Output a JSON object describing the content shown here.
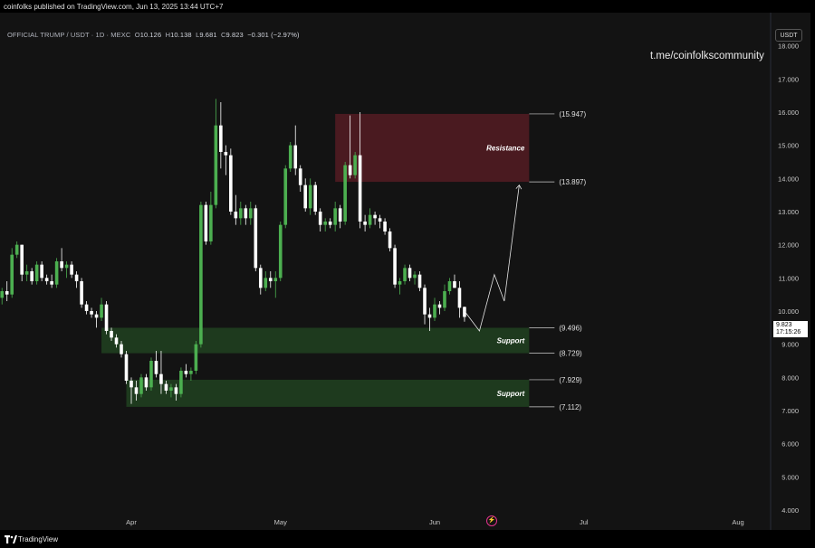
{
  "publisher_line": "coinfolks published on TradingView.com, Jun 13, 2025 13:44 UTC+7",
  "symbol": {
    "name": "OFFICIAL TRUMP / USDT · 1D · MEXC",
    "o_label": "O",
    "o": "10.126",
    "h_label": "H",
    "h": "10.138",
    "l_label": "L",
    "l": "9.681",
    "c_label": "C",
    "c": "9.823",
    "change": "−0.301 (−2.97%)"
  },
  "watermark": "t.me/coinfolkscommunity",
  "currency": "USDT",
  "last_price": {
    "value": "9.823",
    "countdown": "17:15:26"
  },
  "footer_brand": "TradingView",
  "colors": {
    "up": "#4caf50",
    "down": "#ffffff",
    "background": "#131313",
    "resistance": "#4a1a20",
    "support": "#1e3a1e"
  },
  "chart_data": {
    "type": "candlestick",
    "y_axis": {
      "range": [
        3.4,
        19.0
      ],
      "ticks": [
        "18.000",
        "17.000",
        "16.000",
        "15.000",
        "14.000",
        "13.000",
        "12.000",
        "11.000",
        "10.000",
        "9.000",
        "8.000",
        "7.000",
        "6.000",
        "5.000",
        "4.000"
      ]
    },
    "x_axis": {
      "ticks": [
        {
          "label": "Apr",
          "date": "2025-04-01"
        },
        {
          "label": "May",
          "date": "2025-05-01"
        },
        {
          "label": "Jun",
          "date": "2025-06-01"
        },
        {
          "label": "Jul",
          "date": "2025-07-01"
        },
        {
          "label": "Aug",
          "date": "2025-08-01"
        }
      ]
    },
    "candles": [
      {
        "date": "2025-03-01",
        "o": 13.1,
        "h": 13.3,
        "l": 12.2,
        "c": 12.3
      },
      {
        "date": "2025-03-02",
        "o": 12.3,
        "h": 12.4,
        "l": 11.7,
        "c": 11.9
      },
      {
        "date": "2025-03-03",
        "o": 11.9,
        "h": 12.1,
        "l": 10.4,
        "c": 10.6
      },
      {
        "date": "2025-03-04",
        "o": 10.6,
        "h": 10.8,
        "l": 10.0,
        "c": 10.2
      },
      {
        "date": "2025-03-05",
        "o": 10.2,
        "h": 10.6,
        "l": 9.9,
        "c": 10.4
      },
      {
        "date": "2025-03-06",
        "o": 10.4,
        "h": 10.7,
        "l": 10.2,
        "c": 10.6
      },
      {
        "date": "2025-03-07",
        "o": 10.6,
        "h": 10.9,
        "l": 10.3,
        "c": 10.5
      },
      {
        "date": "2025-03-08",
        "o": 10.5,
        "h": 11.9,
        "l": 10.4,
        "c": 11.7
      },
      {
        "date": "2025-03-09",
        "o": 11.7,
        "h": 12.1,
        "l": 11.6,
        "c": 12.0
      },
      {
        "date": "2025-03-10",
        "o": 12.0,
        "h": 12.0,
        "l": 10.9,
        "c": 11.1
      },
      {
        "date": "2025-03-11",
        "o": 11.1,
        "h": 11.4,
        "l": 10.9,
        "c": 11.2
      },
      {
        "date": "2025-03-12",
        "o": 11.2,
        "h": 11.3,
        "l": 10.8,
        "c": 10.9
      },
      {
        "date": "2025-03-13",
        "o": 10.9,
        "h": 11.5,
        "l": 10.8,
        "c": 11.4
      },
      {
        "date": "2025-03-14",
        "o": 11.4,
        "h": 11.5,
        "l": 10.9,
        "c": 11.0
      },
      {
        "date": "2025-03-15",
        "o": 11.0,
        "h": 11.1,
        "l": 10.8,
        "c": 10.9
      },
      {
        "date": "2025-03-16",
        "o": 10.9,
        "h": 11.1,
        "l": 10.7,
        "c": 10.8
      },
      {
        "date": "2025-03-17",
        "o": 10.8,
        "h": 11.6,
        "l": 10.7,
        "c": 11.5
      },
      {
        "date": "2025-03-18",
        "o": 11.5,
        "h": 11.9,
        "l": 11.2,
        "c": 11.3
      },
      {
        "date": "2025-03-19",
        "o": 11.3,
        "h": 11.5,
        "l": 11.0,
        "c": 11.4
      },
      {
        "date": "2025-03-20",
        "o": 11.4,
        "h": 11.5,
        "l": 11.0,
        "c": 11.1
      },
      {
        "date": "2025-03-21",
        "o": 11.1,
        "h": 11.2,
        "l": 10.7,
        "c": 10.9
      },
      {
        "date": "2025-03-22",
        "o": 10.9,
        "h": 11.0,
        "l": 10.1,
        "c": 10.2
      },
      {
        "date": "2025-03-23",
        "o": 10.2,
        "h": 10.3,
        "l": 9.9,
        "c": 10.0
      },
      {
        "date": "2025-03-24",
        "o": 10.0,
        "h": 10.1,
        "l": 9.8,
        "c": 9.9
      },
      {
        "date": "2025-03-25",
        "o": 9.9,
        "h": 10.0,
        "l": 9.5,
        "c": 9.8
      },
      {
        "date": "2025-03-26",
        "o": 9.8,
        "h": 10.4,
        "l": 9.7,
        "c": 10.2
      },
      {
        "date": "2025-03-27",
        "o": 10.2,
        "h": 10.3,
        "l": 9.3,
        "c": 9.4
      },
      {
        "date": "2025-03-28",
        "o": 9.4,
        "h": 9.5,
        "l": 9.1,
        "c": 9.2
      },
      {
        "date": "2025-03-29",
        "o": 9.2,
        "h": 9.3,
        "l": 8.9,
        "c": 9.0
      },
      {
        "date": "2025-03-30",
        "o": 9.0,
        "h": 9.1,
        "l": 8.6,
        "c": 8.7
      },
      {
        "date": "2025-03-31",
        "o": 8.7,
        "h": 8.8,
        "l": 7.8,
        "c": 7.9
      },
      {
        "date": "2025-04-01",
        "o": 7.9,
        "h": 8.0,
        "l": 7.2,
        "c": 7.7
      },
      {
        "date": "2025-04-02",
        "o": 7.7,
        "h": 7.9,
        "l": 7.3,
        "c": 7.5
      },
      {
        "date": "2025-04-03",
        "o": 7.5,
        "h": 8.1,
        "l": 7.4,
        "c": 8.0
      },
      {
        "date": "2025-04-04",
        "o": 8.0,
        "h": 8.1,
        "l": 7.6,
        "c": 7.7
      },
      {
        "date": "2025-04-05",
        "o": 7.7,
        "h": 8.6,
        "l": 7.6,
        "c": 8.5
      },
      {
        "date": "2025-04-06",
        "o": 8.5,
        "h": 8.8,
        "l": 8.0,
        "c": 8.1
      },
      {
        "date": "2025-04-07",
        "o": 8.1,
        "h": 8.8,
        "l": 7.5,
        "c": 7.8
      },
      {
        "date": "2025-04-08",
        "o": 7.8,
        "h": 7.9,
        "l": 7.5,
        "c": 7.6
      },
      {
        "date": "2025-04-09",
        "o": 7.6,
        "h": 7.8,
        "l": 7.4,
        "c": 7.7
      },
      {
        "date": "2025-04-10",
        "o": 7.7,
        "h": 7.8,
        "l": 7.3,
        "c": 7.5
      },
      {
        "date": "2025-04-11",
        "o": 7.5,
        "h": 8.3,
        "l": 7.4,
        "c": 8.2
      },
      {
        "date": "2025-04-12",
        "o": 8.2,
        "h": 8.4,
        "l": 8.0,
        "c": 8.1
      },
      {
        "date": "2025-04-13",
        "o": 8.1,
        "h": 8.3,
        "l": 7.9,
        "c": 8.2
      },
      {
        "date": "2025-04-14",
        "o": 8.2,
        "h": 9.1,
        "l": 8.1,
        "c": 9.0
      },
      {
        "date": "2025-04-15",
        "o": 9.0,
        "h": 13.3,
        "l": 8.9,
        "c": 13.2
      },
      {
        "date": "2025-04-16",
        "o": 13.2,
        "h": 13.3,
        "l": 12.0,
        "c": 12.1
      },
      {
        "date": "2025-04-17",
        "o": 12.1,
        "h": 13.6,
        "l": 12.0,
        "c": 13.2
      },
      {
        "date": "2025-04-18",
        "o": 13.2,
        "h": 16.4,
        "l": 13.1,
        "c": 15.6
      },
      {
        "date": "2025-04-19",
        "o": 15.6,
        "h": 16.3,
        "l": 14.3,
        "c": 14.8
      },
      {
        "date": "2025-04-20",
        "o": 14.8,
        "h": 15.0,
        "l": 14.1,
        "c": 14.7
      },
      {
        "date": "2025-04-21",
        "o": 14.7,
        "h": 14.9,
        "l": 12.9,
        "c": 13.0
      },
      {
        "date": "2025-04-22",
        "o": 13.0,
        "h": 13.5,
        "l": 12.6,
        "c": 12.8
      },
      {
        "date": "2025-04-23",
        "o": 12.8,
        "h": 13.3,
        "l": 12.6,
        "c": 13.1
      },
      {
        "date": "2025-04-24",
        "o": 13.1,
        "h": 13.2,
        "l": 12.6,
        "c": 12.8
      },
      {
        "date": "2025-04-25",
        "o": 12.8,
        "h": 13.3,
        "l": 12.6,
        "c": 13.1
      },
      {
        "date": "2025-04-26",
        "o": 13.1,
        "h": 13.2,
        "l": 11.2,
        "c": 11.3
      },
      {
        "date": "2025-04-27",
        "o": 11.3,
        "h": 11.4,
        "l": 10.5,
        "c": 10.7
      },
      {
        "date": "2025-04-28",
        "o": 10.7,
        "h": 11.2,
        "l": 10.6,
        "c": 11.0
      },
      {
        "date": "2025-04-29",
        "o": 11.0,
        "h": 11.2,
        "l": 10.7,
        "c": 10.9
      },
      {
        "date": "2025-04-30",
        "o": 10.9,
        "h": 11.2,
        "l": 10.4,
        "c": 11.0
      },
      {
        "date": "2025-05-01",
        "o": 11.0,
        "h": 12.7,
        "l": 10.9,
        "c": 12.6
      },
      {
        "date": "2025-05-02",
        "o": 12.6,
        "h": 14.4,
        "l": 12.5,
        "c": 14.3
      },
      {
        "date": "2025-05-03",
        "o": 14.3,
        "h": 15.1,
        "l": 14.2,
        "c": 15.0
      },
      {
        "date": "2025-05-04",
        "o": 15.0,
        "h": 15.6,
        "l": 14.1,
        "c": 14.3
      },
      {
        "date": "2025-05-05",
        "o": 14.3,
        "h": 14.4,
        "l": 13.6,
        "c": 13.8
      },
      {
        "date": "2025-05-06",
        "o": 13.8,
        "h": 14.0,
        "l": 13.0,
        "c": 13.1
      },
      {
        "date": "2025-05-07",
        "o": 13.1,
        "h": 14.0,
        "l": 12.9,
        "c": 13.8
      },
      {
        "date": "2025-05-08",
        "o": 13.8,
        "h": 13.9,
        "l": 12.9,
        "c": 13.0
      },
      {
        "date": "2025-05-09",
        "o": 13.0,
        "h": 13.1,
        "l": 12.4,
        "c": 12.6
      },
      {
        "date": "2025-05-10",
        "o": 12.6,
        "h": 12.8,
        "l": 12.4,
        "c": 12.7
      },
      {
        "date": "2025-05-11",
        "o": 12.7,
        "h": 12.8,
        "l": 12.5,
        "c": 12.6
      },
      {
        "date": "2025-05-12",
        "o": 12.6,
        "h": 13.3,
        "l": 12.4,
        "c": 13.1
      },
      {
        "date": "2025-05-13",
        "o": 13.1,
        "h": 13.2,
        "l": 12.5,
        "c": 12.7
      },
      {
        "date": "2025-05-14",
        "o": 12.7,
        "h": 14.5,
        "l": 12.6,
        "c": 14.4
      },
      {
        "date": "2025-05-15",
        "o": 14.4,
        "h": 15.9,
        "l": 14.0,
        "c": 14.1
      },
      {
        "date": "2025-05-16",
        "o": 14.1,
        "h": 14.8,
        "l": 14.0,
        "c": 14.7
      },
      {
        "date": "2025-05-17",
        "o": 14.7,
        "h": 16.0,
        "l": 12.5,
        "c": 12.7
      },
      {
        "date": "2025-05-18",
        "o": 12.7,
        "h": 12.9,
        "l": 12.4,
        "c": 12.6
      },
      {
        "date": "2025-05-19",
        "o": 12.6,
        "h": 13.1,
        "l": 12.5,
        "c": 12.9
      },
      {
        "date": "2025-05-20",
        "o": 12.9,
        "h": 13.0,
        "l": 12.6,
        "c": 12.8
      },
      {
        "date": "2025-05-21",
        "o": 12.8,
        "h": 12.9,
        "l": 12.5,
        "c": 12.7
      },
      {
        "date": "2025-05-22",
        "o": 12.7,
        "h": 12.8,
        "l": 12.3,
        "c": 12.4
      },
      {
        "date": "2025-05-23",
        "o": 12.4,
        "h": 12.5,
        "l": 11.8,
        "c": 11.9
      },
      {
        "date": "2025-05-24",
        "o": 11.9,
        "h": 12.0,
        "l": 10.7,
        "c": 10.8
      },
      {
        "date": "2025-05-25",
        "o": 10.8,
        "h": 11.0,
        "l": 10.5,
        "c": 10.9
      },
      {
        "date": "2025-05-26",
        "o": 10.9,
        "h": 11.4,
        "l": 10.8,
        "c": 11.3
      },
      {
        "date": "2025-05-27",
        "o": 11.3,
        "h": 11.4,
        "l": 10.9,
        "c": 11.0
      },
      {
        "date": "2025-05-28",
        "o": 11.0,
        "h": 11.2,
        "l": 10.8,
        "c": 11.1
      },
      {
        "date": "2025-05-29",
        "o": 11.1,
        "h": 11.2,
        "l": 10.6,
        "c": 10.7
      },
      {
        "date": "2025-05-30",
        "o": 10.7,
        "h": 10.8,
        "l": 9.6,
        "c": 9.9
      },
      {
        "date": "2025-05-31",
        "o": 9.9,
        "h": 10.1,
        "l": 9.4,
        "c": 9.8
      },
      {
        "date": "2025-06-01",
        "o": 9.8,
        "h": 10.4,
        "l": 9.7,
        "c": 10.2
      },
      {
        "date": "2025-06-02",
        "o": 10.2,
        "h": 10.3,
        "l": 9.9,
        "c": 10.1
      },
      {
        "date": "2025-06-03",
        "o": 10.1,
        "h": 10.8,
        "l": 10.0,
        "c": 10.6
      },
      {
        "date": "2025-06-04",
        "o": 10.6,
        "h": 11.0,
        "l": 10.5,
        "c": 10.9
      },
      {
        "date": "2025-06-05",
        "o": 10.9,
        "h": 11.1,
        "l": 10.7,
        "c": 10.7
      },
      {
        "date": "2025-06-06",
        "o": 10.7,
        "h": 10.9,
        "l": 9.8,
        "c": 10.1
      },
      {
        "date": "2025-06-07",
        "o": 10.126,
        "h": 10.138,
        "l": 9.681,
        "c": 9.823
      }
    ],
    "zones": [
      {
        "label": "Resistance",
        "top": 15.947,
        "bottom": 13.897,
        "start": "2025-05-12",
        "end": "2025-06-20"
      },
      {
        "label": "Support",
        "top": 9.496,
        "bottom": 8.729,
        "start": "2025-03-26",
        "end": "2025-06-20"
      },
      {
        "label": "Support",
        "top": 7.929,
        "bottom": 7.112,
        "start": "2025-03-31",
        "end": "2025-06-20"
      }
    ],
    "level_labels": [
      "(15.947)",
      "(13.897)",
      "(9.496)",
      "(8.729)",
      "(7.929)",
      "(7.112)"
    ],
    "level_values": [
      15.947,
      13.897,
      9.496,
      8.729,
      7.929,
      7.112
    ],
    "projection": [
      {
        "date": "2025-06-07",
        "value": 10.0
      },
      {
        "date": "2025-06-10",
        "value": 9.4
      },
      {
        "date": "2025-06-13",
        "value": 11.1
      },
      {
        "date": "2025-06-15",
        "value": 10.3
      },
      {
        "date": "2025-06-18",
        "value": 13.8
      }
    ]
  }
}
